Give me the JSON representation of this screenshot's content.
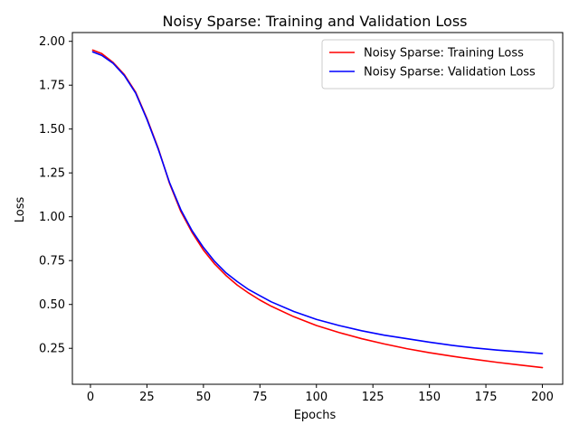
{
  "chart_data": {
    "type": "line",
    "title": "Noisy Sparse: Training and Validation Loss",
    "xlabel": "Epochs",
    "ylabel": "Loss",
    "xlim": [
      -8,
      209
    ],
    "ylim": [
      0.045,
      2.05
    ],
    "xticks": [
      0,
      25,
      50,
      75,
      100,
      125,
      150,
      175,
      200
    ],
    "yticks": [
      0.25,
      0.5,
      0.75,
      1.0,
      1.25,
      1.5,
      1.75,
      2.0
    ],
    "ytick_labels": [
      "0.25",
      "0.50",
      "0.75",
      "1.00",
      "1.25",
      "1.50",
      "1.75",
      "2.00"
    ],
    "legend_position": "top-right",
    "series": [
      {
        "name": "Noisy Sparse: Training Loss",
        "color": "#ff0000",
        "x": [
          1,
          5,
          10,
          15,
          20,
          25,
          30,
          35,
          40,
          45,
          50,
          55,
          60,
          65,
          70,
          75,
          80,
          90,
          100,
          110,
          120,
          130,
          140,
          150,
          160,
          170,
          180,
          190,
          200
        ],
        "y": [
          1.95,
          1.93,
          1.88,
          1.81,
          1.71,
          1.56,
          1.39,
          1.19,
          1.03,
          0.91,
          0.81,
          0.73,
          0.665,
          0.61,
          0.565,
          0.525,
          0.49,
          0.43,
          0.38,
          0.34,
          0.305,
          0.275,
          0.248,
          0.225,
          0.205,
          0.187,
          0.17,
          0.155,
          0.14
        ]
      },
      {
        "name": "Noisy Sparse: Validation Loss",
        "color": "#0000ff",
        "x": [
          1,
          5,
          10,
          15,
          20,
          25,
          30,
          35,
          40,
          45,
          50,
          55,
          60,
          65,
          70,
          75,
          80,
          90,
          100,
          110,
          120,
          130,
          140,
          150,
          160,
          170,
          180,
          190,
          200
        ],
        "y": [
          1.94,
          1.92,
          1.875,
          1.805,
          1.705,
          1.555,
          1.385,
          1.195,
          1.04,
          0.92,
          0.825,
          0.745,
          0.68,
          0.63,
          0.585,
          0.55,
          0.515,
          0.46,
          0.415,
          0.38,
          0.35,
          0.325,
          0.305,
          0.285,
          0.267,
          0.252,
          0.24,
          0.23,
          0.22
        ]
      }
    ]
  }
}
